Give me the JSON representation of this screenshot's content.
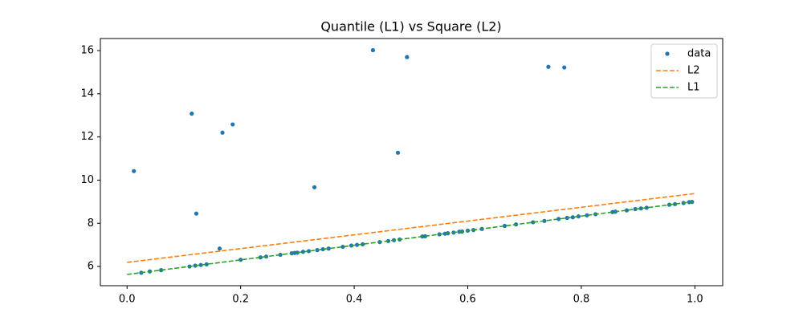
{
  "chart_data": {
    "type": "line",
    "title": "Quantile (L1) vs Square (L2)",
    "xlim": [
      -0.047,
      1.049
    ],
    "ylim": [
      5.11,
      16.56
    ],
    "xticks": [
      {
        "value": 0,
        "label": "0.0"
      },
      0.2,
      0.4,
      0.6,
      0.8,
      {
        "value": 1,
        "label": "1.0"
      }
    ],
    "yticks": [
      6,
      8,
      10,
      12,
      14,
      16
    ],
    "legend": "upper right",
    "series": [
      {
        "name": "data",
        "color": "#1f77b4",
        "marker": "o",
        "linestyle": "none",
        "x": [
          0.012,
          0.114,
          0.122,
          0.168,
          0.186,
          0.163,
          0.33,
          0.433,
          0.477,
          0.493,
          0.742,
          0.77,
          0.025,
          0.04,
          0.06,
          0.11,
          0.12,
          0.13,
          0.14,
          0.2,
          0.235,
          0.245,
          0.27,
          0.29,
          0.295,
          0.3,
          0.31,
          0.32,
          0.335,
          0.345,
          0.355,
          0.38,
          0.395,
          0.405,
          0.415,
          0.445,
          0.46,
          0.47,
          0.48,
          0.52,
          0.525,
          0.55,
          0.56,
          0.565,
          0.575,
          0.585,
          0.59,
          0.6,
          0.61,
          0.625,
          0.665,
          0.685,
          0.715,
          0.735,
          0.76,
          0.775,
          0.785,
          0.795,
          0.81,
          0.825,
          0.855,
          0.86,
          0.88,
          0.895,
          0.905,
          0.915,
          0.955,
          0.965,
          0.98,
          0.99,
          0.995
        ],
        "values": [
          10.42,
          13.08,
          8.45,
          12.2,
          12.58,
          6.83,
          9.67,
          16.02,
          11.27,
          15.7,
          15.25,
          15.22,
          5.71,
          5.77,
          5.83,
          6.0,
          6.04,
          6.07,
          6.1,
          6.31,
          6.42,
          6.46,
          6.54,
          6.61,
          6.63,
          6.64,
          6.68,
          6.71,
          6.76,
          6.8,
          6.83,
          6.91,
          6.97,
          7.0,
          7.03,
          7.13,
          7.18,
          7.22,
          7.25,
          7.39,
          7.4,
          7.49,
          7.52,
          7.54,
          7.57,
          7.61,
          7.62,
          7.66,
          7.69,
          7.74,
          7.88,
          7.95,
          8.05,
          8.11,
          8.2,
          8.25,
          8.28,
          8.32,
          8.37,
          8.42,
          8.52,
          8.54,
          8.6,
          8.66,
          8.69,
          8.72,
          8.86,
          8.89,
          8.94,
          8.98,
          8.99
        ]
      },
      {
        "name": "L2",
        "color": "#ff7f0e",
        "marker": "none",
        "linestyle": "dashed",
        "x": [
          0,
          1
        ],
        "values": [
          6.19,
          9.38
        ]
      },
      {
        "name": "L1",
        "color": "#2ca02c",
        "marker": "none",
        "linestyle": "dashed",
        "x": [
          0,
          1
        ],
        "values": [
          5.63,
          9.01
        ]
      }
    ]
  }
}
